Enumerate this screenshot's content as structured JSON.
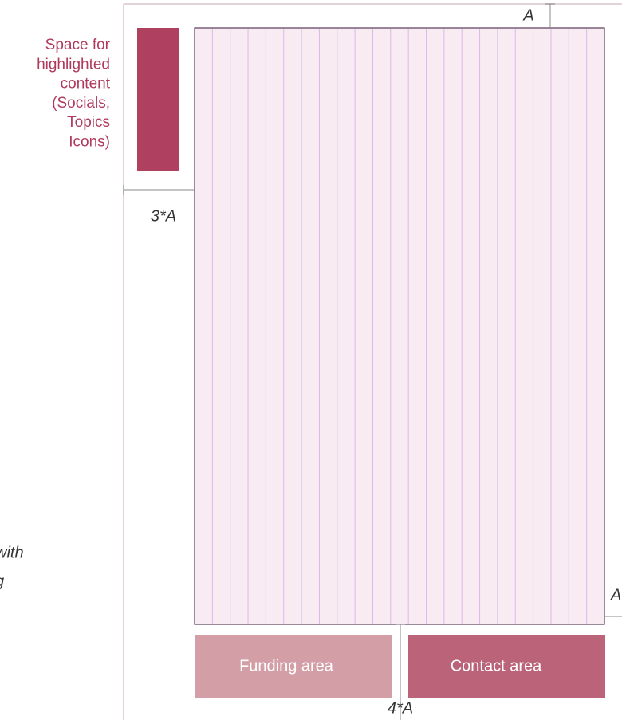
{
  "side_note": {
    "lines": [
      "Space for",
      "highlighted",
      "content",
      "(Socials,",
      "Topics",
      "Icons)"
    ]
  },
  "left_note": {
    "lines": [
      "with",
      "g"
    ]
  },
  "dimensions": {
    "top": "A",
    "left": "3*A",
    "right": "A",
    "bottom": "4*A"
  },
  "areas": {
    "funding": "Funding area",
    "contact": "Contact area"
  }
}
